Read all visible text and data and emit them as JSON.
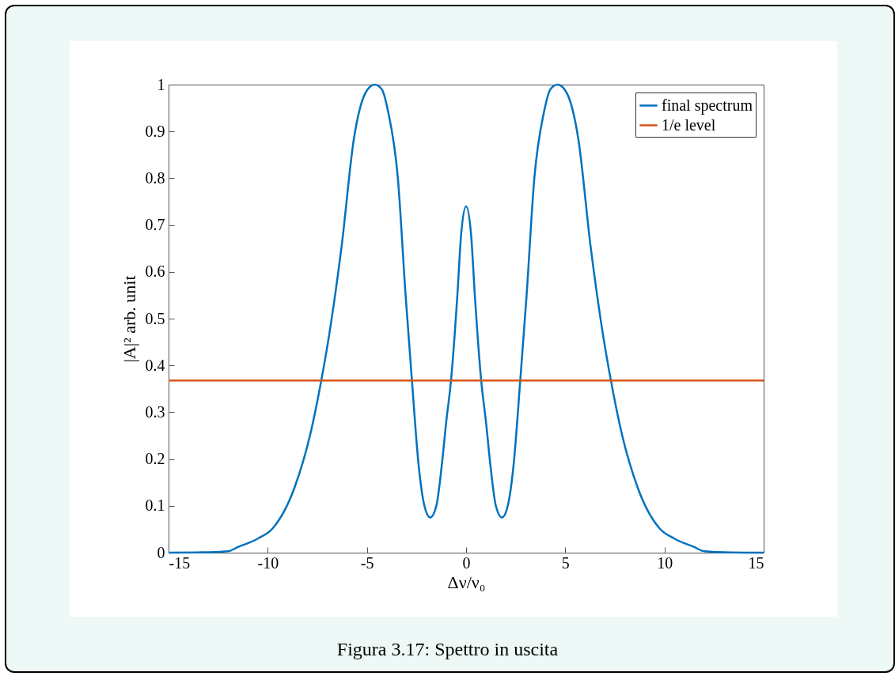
{
  "chart_data": {
    "type": "line",
    "xlabel": "Δν/ν₀",
    "ylabel": "|A|² arb. unit",
    "annotations": [
      "Figura 3.17: Spettro in uscita"
    ],
    "xlim": [
      -15,
      15
    ],
    "xticks": [
      -15,
      -10,
      -5,
      0,
      5,
      10,
      15
    ],
    "ylim": [
      0,
      1
    ],
    "yticks": [
      0,
      0.1,
      0.2,
      0.3,
      0.4,
      0.5,
      0.6,
      0.7,
      0.8,
      0.9,
      1
    ],
    "grid": false,
    "legend": "top right",
    "line_style": "solid",
    "marker": "none",
    "series": [
      {
        "name": "final spectrum",
        "color": "#0072bd",
        "x": [
          -15,
          -13,
          -12,
          -11.5,
          -10.5,
          -9.75,
          -8.65,
          -7.86,
          -7.3,
          -6.9,
          -6.28,
          -5.65,
          -5.1,
          -4.62,
          -4.25,
          -3.92,
          -3.44,
          -3.05,
          -2.73,
          -2.4,
          -2.1,
          -1.81,
          -1.5,
          -1.23,
          -1.0,
          -0.76,
          -0.44,
          -0.25,
          0,
          0.25,
          0.44,
          0.76,
          1.0,
          1.23,
          1.5,
          1.81,
          2.1,
          2.4,
          2.73,
          3.05,
          3.44,
          3.92,
          4.25,
          4.62,
          5.1,
          5.65,
          6.28,
          6.9,
          7.3,
          7.86,
          8.65,
          9.75,
          10.5,
          11.5,
          12,
          13,
          15
        ],
        "values": [
          0,
          0.001,
          0.003,
          0.012,
          0.03,
          0.052,
          0.139,
          0.252,
          0.368,
          0.466,
          0.653,
          0.886,
          0.98,
          1.0,
          0.99,
          0.94,
          0.8,
          0.55,
          0.368,
          0.19,
          0.1,
          0.075,
          0.1,
          0.185,
          0.28,
          0.368,
          0.55,
          0.68,
          0.74,
          0.68,
          0.55,
          0.368,
          0.28,
          0.185,
          0.1,
          0.075,
          0.1,
          0.19,
          0.368,
          0.55,
          0.8,
          0.94,
          0.99,
          1.0,
          0.98,
          0.886,
          0.653,
          0.466,
          0.368,
          0.252,
          0.139,
          0.052,
          0.03,
          0.012,
          0.003,
          0.001,
          0
        ]
      }
    ],
    "ref_lines": [
      {
        "axis": "y",
        "value": 0.368,
        "label": "1/e level",
        "color": "#d95319",
        "line_style": "solid"
      }
    ]
  }
}
